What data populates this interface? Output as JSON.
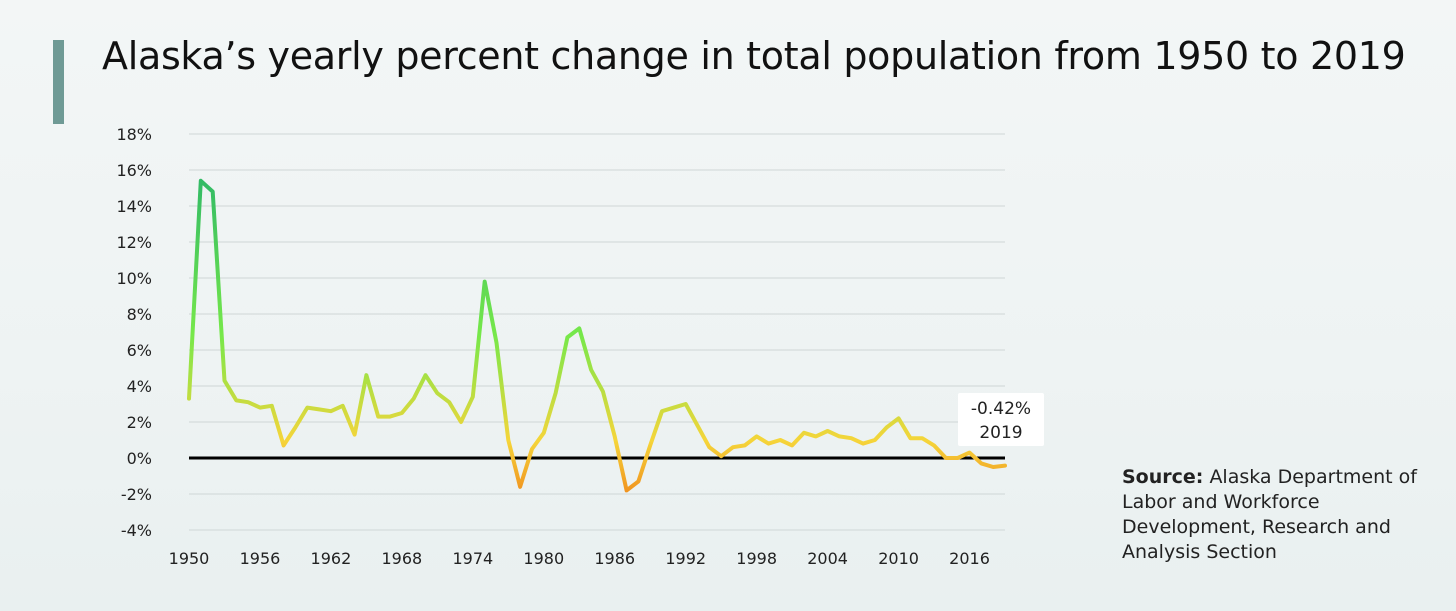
{
  "title": "Alaska’s yearly percent change in total population from 1950 to 2019",
  "source": {
    "label": "Source:",
    "text": "Alaska Department of Labor and Workforce Development, Research and Analysis Section"
  },
  "colors": {
    "accent": "#6f9a95",
    "high": "#2eb867",
    "mid": "#76e84a",
    "low": "#f5d53a",
    "negative": "#f08a1c",
    "zero_line": "#000000"
  },
  "chart_data": {
    "type": "line",
    "x": [
      1950,
      1951,
      1952,
      1953,
      1954,
      1955,
      1956,
      1957,
      1958,
      1959,
      1960,
      1961,
      1962,
      1963,
      1964,
      1965,
      1966,
      1967,
      1968,
      1969,
      1970,
      1971,
      1972,
      1973,
      1974,
      1975,
      1976,
      1977,
      1978,
      1979,
      1980,
      1981,
      1982,
      1983,
      1984,
      1985,
      1986,
      1987,
      1988,
      1989,
      1990,
      1991,
      1992,
      1993,
      1994,
      1995,
      1996,
      1997,
      1998,
      1999,
      2000,
      2001,
      2002,
      2003,
      2004,
      2005,
      2006,
      2007,
      2008,
      2009,
      2010,
      2011,
      2012,
      2013,
      2014,
      2015,
      2016,
      2017,
      2018,
      2019
    ],
    "series": [
      {
        "values": [
          3.3,
          15.4,
          14.8,
          4.3,
          3.2,
          3.1,
          2.8,
          2.9,
          0.7,
          1.7,
          2.8,
          2.7,
          2.6,
          2.9,
          1.3,
          4.6,
          2.3,
          2.3,
          2.5,
          3.3,
          4.6,
          3.6,
          3.1,
          2.0,
          3.4,
          9.8,
          6.4,
          1.0,
          -1.6,
          0.5,
          1.4,
          3.6,
          6.7,
          7.2,
          4.9,
          3.7,
          1.2,
          -1.8,
          -1.3,
          0.7,
          2.6,
          2.8,
          3.0,
          1.8,
          0.6,
          0.1,
          0.6,
          0.7,
          1.2,
          0.8,
          1.0,
          0.7,
          1.4,
          1.2,
          1.5,
          1.2,
          1.1,
          0.8,
          1.0,
          1.7,
          2.2,
          1.1,
          1.1,
          0.7,
          0.0,
          0.0,
          0.3,
          -0.3,
          -0.5,
          -0.42
        ]
      }
    ],
    "y_ticks": [
      "18%",
      "16%",
      "14%",
      "12%",
      "10%",
      "8%",
      "6%",
      "4%",
      "2%",
      "0%",
      "-2%",
      "-4%"
    ],
    "x_ticks": [
      "1950",
      "1956",
      "1962",
      "1968",
      "1974",
      "1980",
      "1986",
      "1992",
      "1998",
      "2004",
      "2010",
      "2016"
    ],
    "ylim": [
      -4,
      18
    ],
    "xlim": [
      1950,
      2019
    ],
    "grid": true,
    "annotation": {
      "value_label": "-0.42%",
      "year_label": "2019"
    }
  }
}
